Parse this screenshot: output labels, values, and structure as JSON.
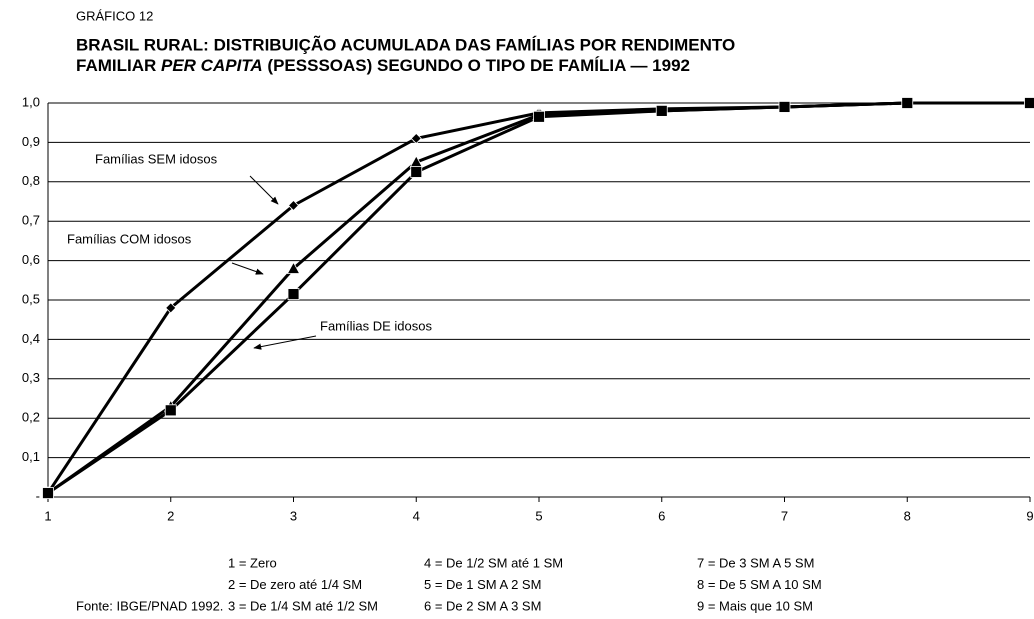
{
  "chart_data": {
    "type": "line",
    "kicker": "GRÁFICO 12",
    "title": {
      "line1": "BRASIL RURAL: DISTRIBUIÇÃO ACUMULADA DAS FAMÍLIAS POR RENDIMENTO",
      "line2": [
        "FAMILIAR ",
        "PER CAPITA",
        " (PESSSOAS) SEGUNDO O TIPO DE FAMÍLIA — 1992"
      ]
    },
    "x": [
      1,
      2,
      3,
      4,
      5,
      6,
      7,
      8,
      9
    ],
    "xlim": [
      1,
      9
    ],
    "xticks": [
      1,
      2,
      3,
      4,
      5,
      6,
      7,
      8,
      9
    ],
    "ylim": [
      0,
      1
    ],
    "yticks": [
      {
        "value": 0,
        "label": "-"
      },
      {
        "value": 0.1,
        "label": "0,1"
      },
      {
        "value": 0.2,
        "label": "0,2"
      },
      {
        "value": 0.3,
        "label": "0,3"
      },
      {
        "value": 0.4,
        "label": "0,4"
      },
      {
        "value": 0.5,
        "label": "0,5"
      },
      {
        "value": 0.6,
        "label": "0,6"
      },
      {
        "value": 0.7,
        "label": "0,7"
      },
      {
        "value": 0.8,
        "label": "0,8"
      },
      {
        "value": 0.9,
        "label": "0,9"
      },
      {
        "value": 1.0,
        "label": "1,0"
      }
    ],
    "grid": true,
    "series": [
      {
        "name": "Famílias SEM idosos",
        "color": "#000000",
        "marker": "diamond",
        "values": [
          0.01,
          0.48,
          0.74,
          0.91,
          0.975,
          0.985,
          0.99,
          1.0,
          1.0
        ]
      },
      {
        "name": "Famílias COM idosos",
        "color": "#000000",
        "marker": "triangle",
        "values": [
          0.01,
          0.23,
          0.58,
          0.85,
          0.97,
          0.98,
          0.99,
          1.0,
          1.0
        ]
      },
      {
        "name": "Famílias DE idosos",
        "color": "#000000",
        "marker": "square",
        "values": [
          0.01,
          0.22,
          0.515,
          0.825,
          0.965,
          0.98,
          0.99,
          1.0,
          1.0
        ]
      }
    ],
    "x_legend": [
      "1 = Zero",
      "2 = De zero até 1/4 SM",
      "3 = De 1/4 SM até 1/2 SM",
      "4 = De 1/2 SM até 1 SM",
      "5 = De 1 SM A 2 SM",
      "6 = De 2 SM A 3 SM",
      "7 = De 3 SM A 5 SM",
      "8 = De 5 SM A 10 SM",
      "9 = Mais que 10 SM"
    ],
    "source": "Fonte: IBGE/PNAD 1992."
  }
}
